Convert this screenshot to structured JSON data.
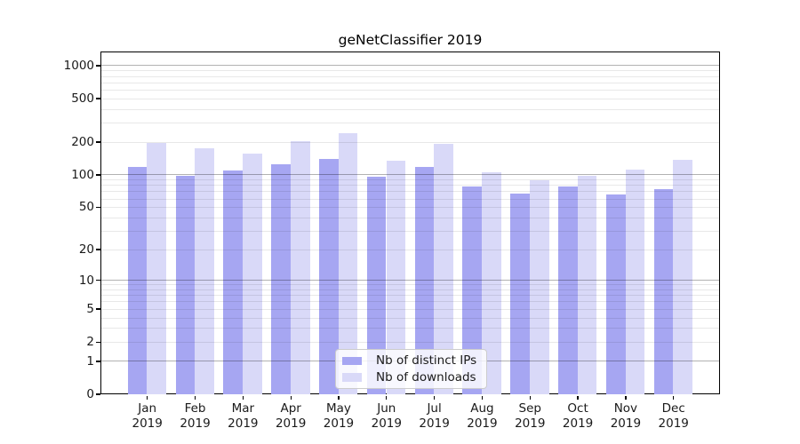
{
  "title": "geNetClassifier 2019",
  "legend": {
    "items": [
      {
        "label": "Nb of distinct IPs",
        "color": "#a6a6f2"
      },
      {
        "label": "Nb of downloads",
        "color": "#d9d9f8"
      }
    ]
  },
  "chart_data": {
    "type": "bar",
    "title": "geNetClassifier 2019",
    "categories": [
      "Jan 2019",
      "Feb 2019",
      "Mar 2019",
      "Apr 2019",
      "May 2019",
      "Jun 2019",
      "Jul 2019",
      "Aug 2019",
      "Sep 2019",
      "Oct 2019",
      "Nov 2019",
      "Dec 2019"
    ],
    "series": [
      {
        "name": "Nb of distinct IPs",
        "color": "#a6a6f2",
        "values": [
          117,
          98,
          109,
          124,
          139,
          95,
          118,
          77,
          67,
          77,
          65,
          73
        ]
      },
      {
        "name": "Nb of downloads",
        "color": "#d9d9f8",
        "values": [
          196,
          174,
          157,
          203,
          238,
          134,
          192,
          104,
          88,
          97,
          111,
          136
        ]
      }
    ],
    "xlabel": "",
    "ylabel": "",
    "yscale": "log1p",
    "ylim": [
      0,
      1325
    ],
    "y_tick_values": [
      0,
      1,
      2,
      5,
      10,
      20,
      50,
      100,
      200,
      500,
      1000
    ],
    "grid": "horizontal; darker lines at powers of 10, light minor lines at 2-9 per decade",
    "legend_position": "inside, lower center"
  }
}
